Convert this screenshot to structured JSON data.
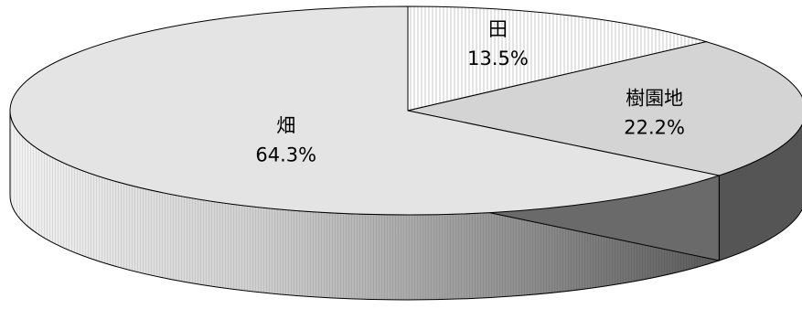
{
  "chart_data": {
    "type": "pie",
    "style": "3d",
    "slices": [
      {
        "name": "田",
        "value": 13.5,
        "label": "13.5%",
        "pattern": "vertical-stripes",
        "color": "#ffffff"
      },
      {
        "name": "樹園地",
        "value": 22.2,
        "label": "22.2%",
        "pattern": "solid",
        "color": "#d4d4d4"
      },
      {
        "name": "畑",
        "value": 64.3,
        "label": "64.3%",
        "pattern": "solid",
        "color": "#e4e4e4"
      }
    ],
    "side_colors": {
      "dark": "#555555",
      "light_gradient_start": "#f0f0f0",
      "light_gradient_end": "#5a5a5a"
    },
    "title": "",
    "legend": "none"
  }
}
